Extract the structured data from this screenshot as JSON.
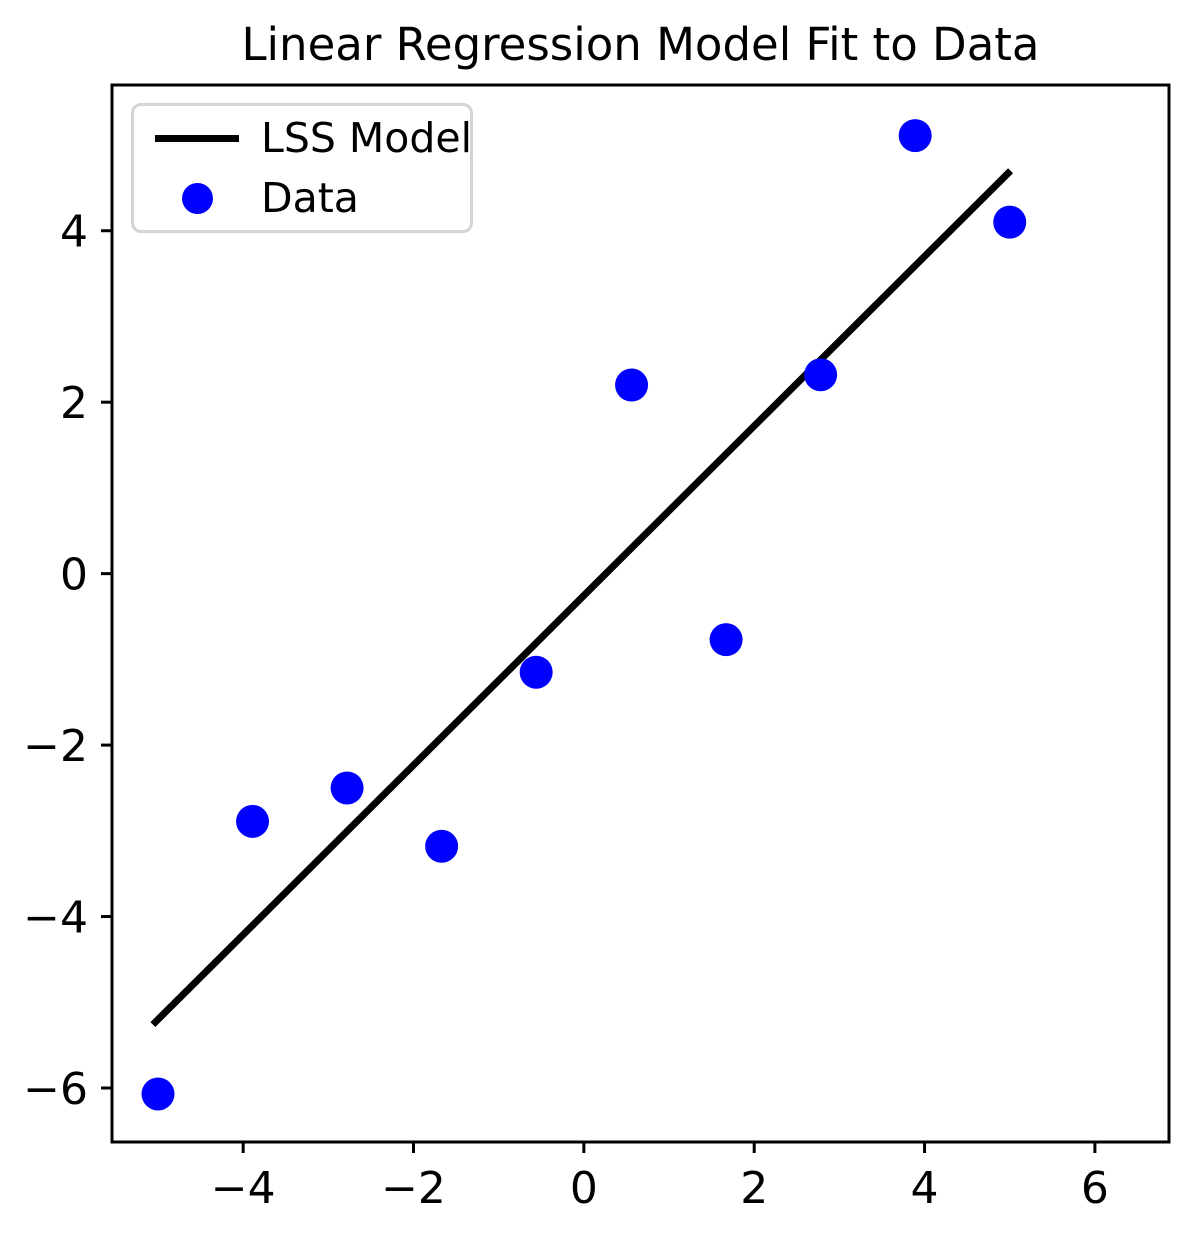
{
  "figure": {
    "background": "#ffffff"
  },
  "chart_data": {
    "type": "scatter",
    "title": "Linear Regression Model Fit to Data",
    "xlabel": "",
    "ylabel": "",
    "grid": false,
    "legend_position": "upper left",
    "xlim": [
      -5.54,
      6.87
    ],
    "ylim": [
      -6.63,
      5.7
    ],
    "x_ticks": [
      -4,
      -2,
      0,
      2,
      4,
      6
    ],
    "x_tick_labels": [
      "−4",
      "−2",
      "0",
      "2",
      "4",
      "6"
    ],
    "y_ticks": [
      4,
      2,
      0,
      -2,
      -4,
      -6
    ],
    "y_tick_labels": [
      "4",
      "2",
      "0",
      "−2",
      "−4",
      "−6"
    ],
    "series": [
      {
        "name": "LSS Model",
        "type": "line",
        "color": "#000000",
        "slope": 0.99,
        "intercept": -0.28,
        "endpoints": [
          [
            -5.06,
            -5.26
          ],
          [
            5.01,
            4.7
          ]
        ]
      },
      {
        "name": "Data",
        "type": "scatter",
        "color": "#0000ff",
        "points": [
          [
            -5.0,
            -6.07
          ],
          [
            -3.89,
            -2.89
          ],
          [
            -2.78,
            -2.5
          ],
          [
            -1.67,
            -3.18
          ],
          [
            -0.56,
            -1.15
          ],
          [
            0.56,
            2.2
          ],
          [
            1.67,
            -0.77
          ],
          [
            2.78,
            2.32
          ],
          [
            3.89,
            5.11
          ],
          [
            5.0,
            4.1
          ]
        ]
      }
    ]
  },
  "legend": {
    "items": [
      {
        "label": "LSS Model",
        "marker": "line",
        "color": "#000000"
      },
      {
        "label": "Data",
        "marker": "dot",
        "color": "#0000ff"
      }
    ]
  }
}
